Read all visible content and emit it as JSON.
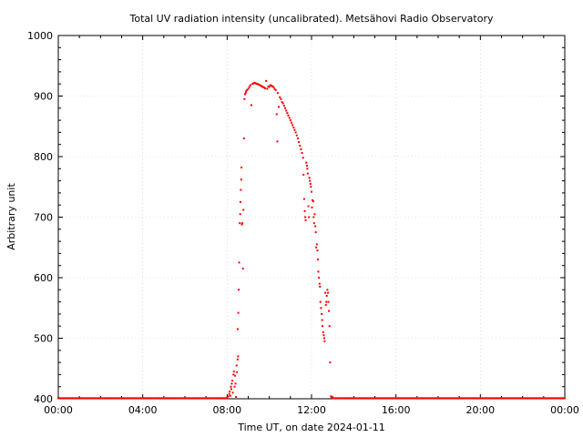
{
  "chart_data": {
    "type": "scatter",
    "title": "Total UV radiation intensity (uncalibrated). Metsähovi Radio Observatory",
    "xlabel": "Time UT, on date 2024-01-11",
    "ylabel": "Arbitrary unit",
    "x_range_hours": [
      0,
      24
    ],
    "ylim": [
      400,
      1000
    ],
    "x_ticks": [
      {
        "hour": 0,
        "label": "00:00"
      },
      {
        "hour": 4,
        "label": "04:00"
      },
      {
        "hour": 8,
        "label": "08:00"
      },
      {
        "hour": 12,
        "label": "12:00"
      },
      {
        "hour": 16,
        "label": "16:00"
      },
      {
        "hour": 20,
        "label": "20:00"
      },
      {
        "hour": 24,
        "label": "00:00"
      }
    ],
    "y_ticks": [
      400,
      500,
      600,
      700,
      800,
      900,
      1000
    ],
    "grid": true,
    "marker_color": "#ff0000",
    "series": [
      {
        "baseline": {
          "from_hour": 0,
          "to_hour": 8.0,
          "value": 401
        },
        "baseline_evening": {
          "from_hour": 13.0,
          "to_hour": 24,
          "value": 401
        },
        "points": [
          [
            8.0,
            402
          ],
          [
            8.05,
            404
          ],
          [
            8.1,
            408
          ],
          [
            8.12,
            412
          ],
          [
            8.15,
            405
          ],
          [
            8.18,
            420
          ],
          [
            8.2,
            416
          ],
          [
            8.22,
            425
          ],
          [
            8.25,
            430
          ],
          [
            8.27,
            410
          ],
          [
            8.3,
            440
          ],
          [
            8.32,
            445
          ],
          [
            8.35,
            420
          ],
          [
            8.38,
            438
          ],
          [
            8.4,
            425
          ],
          [
            8.42,
            403
          ],
          [
            8.45,
            455
          ],
          [
            8.47,
            444
          ],
          [
            8.5,
            465
          ],
          [
            8.52,
            470
          ],
          [
            8.5,
            515
          ],
          [
            8.53,
            542
          ],
          [
            8.55,
            580
          ],
          [
            8.57,
            625
          ],
          [
            8.6,
            690
          ],
          [
            8.62,
            705
          ],
          [
            8.63,
            725
          ],
          [
            8.65,
            745
          ],
          [
            8.67,
            762
          ],
          [
            8.68,
            782
          ],
          [
            8.7,
            688
          ],
          [
            8.72,
            690
          ],
          [
            8.75,
            615
          ],
          [
            8.77,
            712
          ],
          [
            8.8,
            830
          ],
          [
            8.82,
            895
          ],
          [
            8.85,
            903
          ],
          [
            8.88,
            905
          ],
          [
            8.9,
            908
          ],
          [
            8.95,
            910
          ],
          [
            9.0,
            912
          ],
          [
            9.05,
            915
          ],
          [
            9.1,
            918
          ],
          [
            9.15,
            885
          ],
          [
            9.2,
            920
          ],
          [
            9.25,
            921
          ],
          [
            9.3,
            922
          ],
          [
            9.35,
            921
          ],
          [
            9.4,
            920
          ],
          [
            9.45,
            920
          ],
          [
            9.5,
            919
          ],
          [
            9.55,
            918
          ],
          [
            9.6,
            917
          ],
          [
            9.65,
            916
          ],
          [
            9.7,
            915
          ],
          [
            9.75,
            914
          ],
          [
            9.8,
            913
          ],
          [
            9.85,
            925
          ],
          [
            9.9,
            912
          ],
          [
            9.95,
            916
          ],
          [
            10.0,
            915
          ],
          [
            10.05,
            918
          ],
          [
            10.1,
            917
          ],
          [
            10.15,
            916
          ],
          [
            10.2,
            915
          ],
          [
            10.25,
            912
          ],
          [
            10.3,
            910
          ],
          [
            10.35,
            870
          ],
          [
            10.38,
            825
          ],
          [
            10.4,
            905
          ],
          [
            10.45,
            882
          ],
          [
            10.5,
            898
          ],
          [
            10.55,
            895
          ],
          [
            10.6,
            890
          ],
          [
            10.65,
            888
          ],
          [
            10.7,
            884
          ],
          [
            10.75,
            880
          ],
          [
            10.8,
            876
          ],
          [
            10.85,
            872
          ],
          [
            10.9,
            868
          ],
          [
            10.95,
            864
          ],
          [
            11.0,
            860
          ],
          [
            11.05,
            856
          ],
          [
            11.1,
            852
          ],
          [
            11.15,
            848
          ],
          [
            11.2,
            844
          ],
          [
            11.25,
            840
          ],
          [
            11.3,
            835
          ],
          [
            11.35,
            830
          ],
          [
            11.4,
            824
          ],
          [
            11.45,
            818
          ],
          [
            11.5,
            812
          ],
          [
            11.55,
            806
          ],
          [
            11.6,
            798
          ],
          [
            11.62,
            770
          ],
          [
            11.65,
            730
          ],
          [
            11.68,
            710
          ],
          [
            11.7,
            700
          ],
          [
            11.72,
            695
          ],
          [
            11.75,
            790
          ],
          [
            11.78,
            785
          ],
          [
            11.8,
            780
          ],
          [
            11.82,
            772
          ],
          [
            11.85,
            718
          ],
          [
            11.88,
            700
          ],
          [
            11.9,
            765
          ],
          [
            11.92,
            760
          ],
          [
            11.95,
            755
          ],
          [
            11.97,
            750
          ],
          [
            12.0,
            742
          ],
          [
            12.02,
            716
          ],
          [
            12.05,
            728
          ],
          [
            12.08,
            726
          ],
          [
            12.1,
            700
          ],
          [
            12.12,
            690
          ],
          [
            12.15,
            705
          ],
          [
            12.18,
            685
          ],
          [
            12.2,
            675
          ],
          [
            12.22,
            650
          ],
          [
            12.25,
            655
          ],
          [
            12.28,
            645
          ],
          [
            12.3,
            630
          ],
          [
            12.32,
            610
          ],
          [
            12.35,
            600
          ],
          [
            12.38,
            590
          ],
          [
            12.4,
            585
          ],
          [
            12.42,
            560
          ],
          [
            12.45,
            550
          ],
          [
            12.48,
            540
          ],
          [
            12.5,
            530
          ],
          [
            12.52,
            520
          ],
          [
            12.55,
            510
          ],
          [
            12.58,
            505
          ],
          [
            12.6,
            500
          ],
          [
            12.62,
            495
          ],
          [
            12.65,
            575
          ],
          [
            12.68,
            555
          ],
          [
            12.7,
            560
          ],
          [
            12.72,
            570
          ],
          [
            12.75,
            580
          ],
          [
            12.78,
            575
          ],
          [
            12.8,
            560
          ],
          [
            12.82,
            545
          ],
          [
            12.85,
            520
          ],
          [
            12.88,
            460
          ],
          [
            12.92,
            404
          ],
          [
            12.95,
            402
          ],
          [
            13.0,
            401
          ]
        ]
      }
    ]
  }
}
